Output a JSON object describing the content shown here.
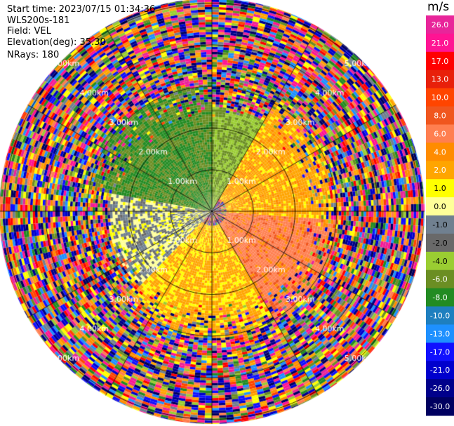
{
  "info": {
    "start_time": "Start time: 2023/07/15 01:34:36",
    "instrument": "WLS200s-181",
    "field": "Field: VEL",
    "elevation": "Elevation(deg): 35.30",
    "nrays": "NRays: 180"
  },
  "colorbar": {
    "unit": "m/s",
    "ticks": [
      "26.0",
      "21.0",
      "17.0",
      "13.0",
      "10.0",
      "8.0",
      "6.0",
      "4.0",
      "2.0",
      "1.0",
      "0.0",
      "-1.0",
      "-2.0",
      "-4.0",
      "-6.0",
      "-8.0",
      "-10.0",
      "-13.0",
      "-17.0",
      "-21.0",
      "-26.0",
      "-30.0"
    ],
    "colors": [
      "#e8259a",
      "#ff1493",
      "#ff0000",
      "#e8200a",
      "#ff4500",
      "#f0561e",
      "#ff7f50",
      "#ff8c00",
      "#ffa500",
      "#ffff00",
      "#ffff99",
      "#708090",
      "#696969",
      "#9acd32",
      "#6b8e23",
      "#228b22",
      "#1e7fbf",
      "#1e90ff",
      "#1010ff",
      "#0000cd",
      "#00008b",
      "#000060"
    ]
  },
  "chart_data": {
    "type": "heatmap",
    "title": "",
    "field": "VEL",
    "unit": "m/s",
    "n_rays": 180,
    "elevation_deg": 35.3,
    "range_rings_km": [
      "1.00km",
      "2.00km",
      "3.00km",
      "4.00km",
      "5.00km"
    ],
    "range_ring_values_km": [
      1,
      2,
      3,
      4,
      5
    ],
    "value_range": [
      -30,
      26
    ],
    "regions": [
      {
        "sector_deg": [
          280,
          360
        ],
        "range_km": [
          0,
          3
        ],
        "velocity_ms": -6.0
      },
      {
        "sector_deg": [
          0,
          30
        ],
        "range_km": [
          0,
          2.5
        ],
        "velocity_ms": -4.0
      },
      {
        "sector_deg": [
          30,
          95
        ],
        "range_km": [
          0.3,
          3
        ],
        "velocity_ms": 3.0
      },
      {
        "sector_deg": [
          95,
          150
        ],
        "range_km": [
          0.3,
          3
        ],
        "velocity_ms": 7.0
      },
      {
        "sector_deg": [
          150,
          225
        ],
        "range_km": [
          0.3,
          3
        ],
        "velocity_ms": 2.5
      },
      {
        "sector_deg": [
          225,
          280
        ],
        "range_km": [
          0,
          2.5
        ],
        "velocity_ms": 0.0
      }
    ],
    "outer_noise_range_km": [
      3,
      5.1
    ]
  }
}
